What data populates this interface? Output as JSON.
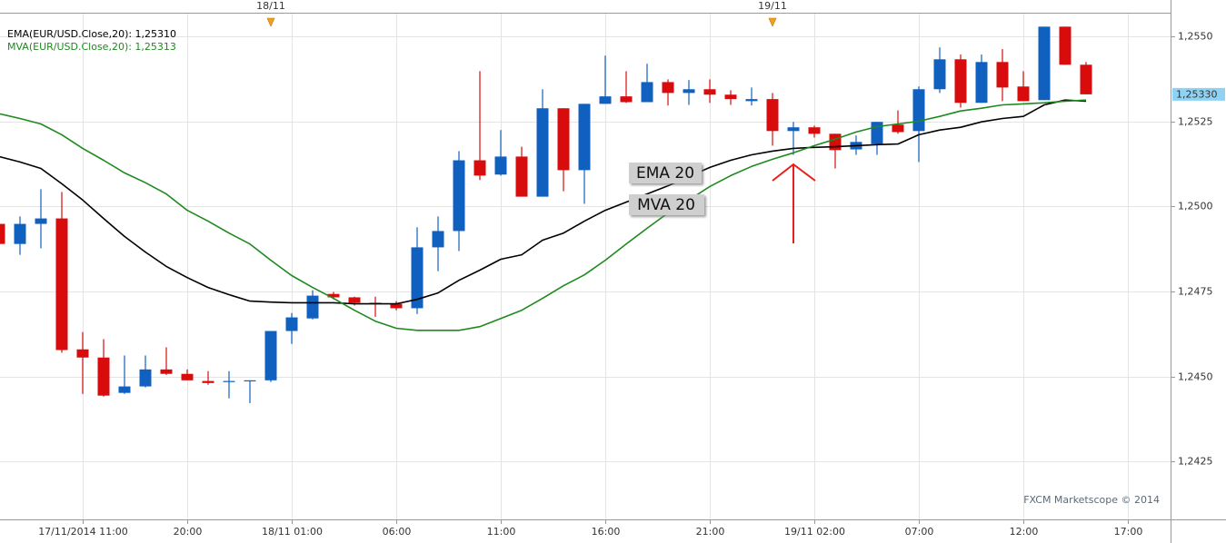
{
  "chart_data": {
    "type": "candlestick",
    "categories": [
      null,
      null,
      null,
      null,
      "17/11/2014 11:00",
      null,
      null,
      null,
      null,
      "20:00",
      null,
      null,
      null,
      null,
      "18/11 01:00",
      null,
      null,
      null,
      null,
      "06:00",
      null,
      null,
      null,
      null,
      "11:00",
      null,
      null,
      null,
      null,
      "16:00",
      null,
      null,
      null,
      null,
      "21:00",
      null,
      null,
      null,
      null,
      "19/11 02:00",
      null,
      null,
      null,
      null,
      "07:00",
      null,
      null,
      null,
      null,
      "12:00",
      null,
      null,
      null,
      null,
      "17:00"
    ],
    "open": [
      1.24949,
      1.2489,
      1.24949,
      1.24965,
      1.2458,
      1.24556,
      1.24452,
      1.24471,
      1.24521,
      1.24508,
      1.24487,
      1.24484,
      1.24487,
      1.24489,
      1.24634,
      1.24671,
      1.24743,
      1.24733,
      1.24717,
      1.24714,
      1.24701,
      1.2488,
      1.24928,
      1.25136,
      1.25094,
      1.25147,
      1.25029,
      1.25289,
      1.25107,
      1.25302,
      1.25324,
      1.25307,
      1.25366,
      1.25334,
      1.25345,
      1.25329,
      1.2531,
      1.25316,
      1.25222,
      1.25233,
      1.25214,
      1.25168,
      1.25184,
      1.25241,
      1.25222,
      1.25345,
      1.25433,
      1.25305,
      1.25425,
      1.25353,
      1.25313,
      1.25529,
      1.25417,
      null,
      null
    ],
    "high": [
      1.2496,
      1.24971,
      1.25051,
      1.25043,
      1.24631,
      1.2461,
      1.24562,
      1.24562,
      1.24586,
      1.24521,
      1.24516,
      1.24516,
      1.24489,
      1.24634,
      1.24687,
      1.24754,
      1.24749,
      1.24735,
      1.24735,
      1.24722,
      1.24939,
      1.24971,
      1.25163,
      1.25398,
      1.25225,
      1.25176,
      1.25345,
      1.25289,
      1.25302,
      1.25444,
      1.25398,
      1.2542,
      1.25374,
      1.25372,
      1.25374,
      1.25342,
      1.2535,
      1.25334,
      1.25249,
      1.25238,
      1.25214,
      1.25209,
      1.25249,
      1.25283,
      1.25353,
      1.25468,
      1.25447,
      1.25447,
      1.25463,
      1.25398,
      1.25529,
      1.25529,
      1.25425,
      null,
      null
    ],
    "low": [
      1.2488,
      1.24858,
      1.24877,
      1.2457,
      1.24449,
      1.24441,
      1.24449,
      1.24468,
      1.24505,
      1.24489,
      1.24476,
      1.24436,
      1.24422,
      1.24484,
      1.24596,
      1.24668,
      1.24727,
      1.24709,
      1.24676,
      1.24695,
      1.24684,
      1.2481,
      1.24869,
      1.25078,
      1.25091,
      1.25029,
      1.25029,
      1.25045,
      1.25008,
      1.25302,
      1.25305,
      1.25307,
      1.25297,
      1.25299,
      1.25305,
      1.25299,
      1.25297,
      1.25179,
      1.25152,
      1.25203,
      1.25112,
      1.25152,
      1.25152,
      1.25214,
      1.25131,
      1.25334,
      1.25291,
      1.25305,
      1.2531,
      1.2531,
      1.25313,
      1.25417,
      1.2533,
      null,
      null
    ],
    "close": [
      1.2489,
      1.24949,
      1.24965,
      1.24578,
      1.24556,
      1.24444,
      1.24471,
      1.24521,
      1.24508,
      1.24489,
      1.24481,
      1.24487,
      1.24489,
      1.24634,
      1.24674,
      1.24738,
      1.24733,
      1.24717,
      1.24714,
      1.24701,
      1.2488,
      1.24928,
      1.25136,
      1.25091,
      1.25147,
      1.25029,
      1.25289,
      1.25107,
      1.25302,
      1.25324,
      1.25307,
      1.25366,
      1.25334,
      1.25345,
      1.25329,
      1.25316,
      1.25316,
      1.25222,
      1.25233,
      1.25214,
      1.25166,
      1.2519,
      1.25249,
      1.25219,
      1.25345,
      1.25433,
      1.25305,
      1.25425,
      1.2535,
      1.2531,
      1.25529,
      1.25417,
      1.2533,
      null,
      null
    ],
    "up_color": "#1060c0",
    "down_color": "#d80c0c",
    "series": [
      {
        "name": "EMA(EUR/USD.Close,20): 1,25310",
        "color": "#000000",
        "values": [
          1.25147,
          1.25131,
          1.25112,
          1.25067,
          1.25019,
          1.24965,
          1.24912,
          1.24866,
          1.24824,
          1.24791,
          1.24762,
          1.24741,
          1.24722,
          1.24719,
          1.24717,
          1.24717,
          1.24717,
          1.24714,
          1.24714,
          1.24714,
          1.24727,
          1.24746,
          1.24783,
          1.24813,
          1.24845,
          1.24858,
          1.24901,
          1.24922,
          1.24957,
          1.24989,
          1.25013,
          1.25037,
          1.25061,
          1.25088,
          1.25115,
          1.25136,
          1.25152,
          1.25163,
          1.25171,
          1.25174,
          1.25176,
          1.25179,
          1.25182,
          1.25184,
          1.25211,
          1.25225,
          1.25233,
          1.25249,
          1.25259,
          1.25265,
          1.25299,
          1.25313,
          1.2531,
          null,
          null
        ]
      },
      {
        "name": "MVA(EUR/USD.Close,20): 1,25313",
        "color": "#1e8a1e",
        "values": [
          1.25273,
          1.25259,
          1.25243,
          1.25211,
          1.25171,
          1.25136,
          1.25099,
          1.2507,
          1.25037,
          1.24989,
          1.24957,
          1.24922,
          1.2489,
          1.24842,
          1.24797,
          1.24762,
          1.2473,
          1.24695,
          1.24663,
          1.24642,
          1.24636,
          1.24636,
          1.24636,
          1.24647,
          1.24671,
          1.24695,
          1.2473,
          1.24767,
          1.24799,
          1.24842,
          1.2489,
          1.24936,
          1.24981,
          1.25019,
          1.25059,
          1.25091,
          1.25118,
          1.25139,
          1.25158,
          1.25179,
          1.25198,
          1.25219,
          1.25235,
          1.25243,
          1.25251,
          1.25265,
          1.25281,
          1.25289,
          1.25299,
          1.25302,
          1.25305,
          1.2531,
          1.25313,
          null,
          null
        ]
      }
    ],
    "ylim": [
      1.2408,
      1.2557
    ],
    "yticks": [
      {
        "value": 1.2425,
        "label": "1,2425"
      },
      {
        "value": 1.245,
        "label": "1,2450"
      },
      {
        "value": 1.2475,
        "label": "1,2475"
      },
      {
        "value": 1.25,
        "label": "1,2500"
      },
      {
        "value": 1.2525,
        "label": "1,2525"
      },
      {
        "value": 1.255,
        "label": "1,2550"
      }
    ],
    "grid": true,
    "last_price": {
      "value": 1.2533,
      "label": "1,25330",
      "color": "#8fd3f4"
    },
    "day_markers": [
      {
        "category": 13,
        "label": "18/11"
      },
      {
        "category": 37,
        "label": "19/11"
      }
    ],
    "annotations": [
      "EMA 20",
      "MVA 20"
    ],
    "watermark": "FXCM Marketscope © 2014"
  }
}
